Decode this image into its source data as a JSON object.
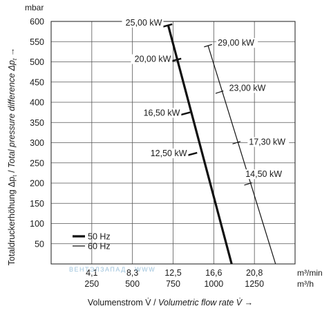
{
  "chart_data": {
    "type": "line",
    "y_unit": "mbar",
    "ylabel_prefix": "Totaldruckerhöhung Δp",
    "ylabel_subscript": "t",
    "ylabel_middle": " / ",
    "ylabel_italic": "Total pressure difference Δp",
    "ylabel_italic_subscript": "t",
    "ylabel_arrow": " →",
    "xlabel_prefix": "Volumenstrom V̇ / ",
    "xlabel_italic": "Volumetric flow rate V̇",
    "xlabel_arrow": " →",
    "ylim": [
      0,
      600
    ],
    "xlim": [
      0,
      1500
    ],
    "y_ticks": [
      "600",
      "550",
      "500",
      "450",
      "400",
      "350",
      "300",
      "250",
      "200",
      "150",
      "100",
      "50"
    ],
    "y_tick_values": [
      600,
      550,
      500,
      450,
      400,
      350,
      300,
      250,
      200,
      150,
      100,
      50
    ],
    "x_tick_values": [
      250,
      500,
      750,
      1000,
      1250
    ],
    "x_ticks_m3min": [
      "4,1",
      "8,3",
      "12,5",
      "16,6",
      "20,8"
    ],
    "x_ticks_m3h": [
      "250",
      "500",
      "750",
      "1000",
      "1250"
    ],
    "x_unit_m3min": "m³/min",
    "x_unit_m3h": "m³/h",
    "grid": true,
    "legend_position": "bottom-left",
    "series": [
      {
        "name": "50 Hz",
        "line": "thick",
        "x": [
          720,
          1110
        ],
        "y": [
          590,
          0
        ],
        "power_marks": [
          {
            "label": "25,00 kW",
            "x": 716,
            "y": 590
          },
          {
            "label": "20,00 kW",
            "x": 771,
            "y": 505
          },
          {
            "label": "16,50 kW",
            "x": 826,
            "y": 372
          },
          {
            "label": "12,50 kW",
            "x": 869,
            "y": 272
          }
        ]
      },
      {
        "name": "60 Hz",
        "line": "thin",
        "x": [
          965,
          1380
        ],
        "y": [
          540,
          0
        ],
        "power_marks": [
          {
            "label": "29,00 kW",
            "x": 965,
            "y": 540
          },
          {
            "label": "23,00 kW",
            "x": 1035,
            "y": 425
          },
          {
            "label": "17,30 kW",
            "x": 1140,
            "y": 300
          },
          {
            "label": "14,50 kW",
            "x": 1212,
            "y": 198
          }
        ]
      }
    ],
    "watermark": "ВЕНТЭЛЗАПАД · WWW"
  }
}
